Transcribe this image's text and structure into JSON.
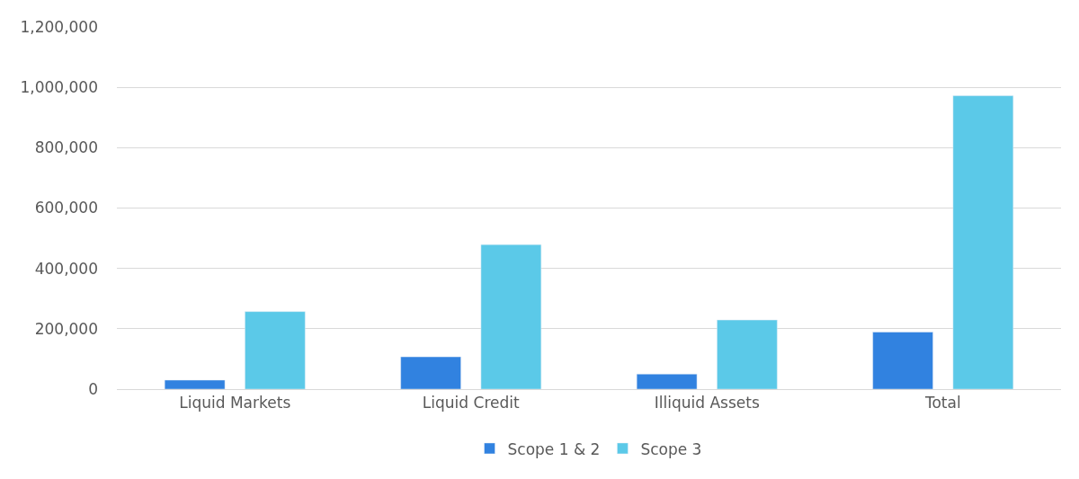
{
  "chart_data": {
    "type": "bar",
    "categories": [
      "Liquid Markets",
      "Liquid Credit",
      "Illiquid Assets",
      "Total"
    ],
    "series": [
      {
        "name": "Scope 1 & 2",
        "color": "#3182e0",
        "values": [
          30000,
          107000,
          50000,
          189000
        ]
      },
      {
        "name": "Scope 3",
        "color": "#5bc9e8",
        "values": [
          257000,
          479000,
          229000,
          972000
        ]
      }
    ],
    "ylim": [
      0,
      1200000
    ],
    "yticks": [
      {
        "value": 0,
        "label": "0"
      },
      {
        "value": 200000,
        "label": "200,000"
      },
      {
        "value": 400000,
        "label": "400,000"
      },
      {
        "value": 600000,
        "label": "600,000"
      },
      {
        "value": 800000,
        "label": "800,000"
      },
      {
        "value": 1000000,
        "label": "1,000,000"
      },
      {
        "value": 1200000,
        "label": "1,200,000"
      }
    ],
    "grid": "y",
    "legend": "bottom"
  }
}
